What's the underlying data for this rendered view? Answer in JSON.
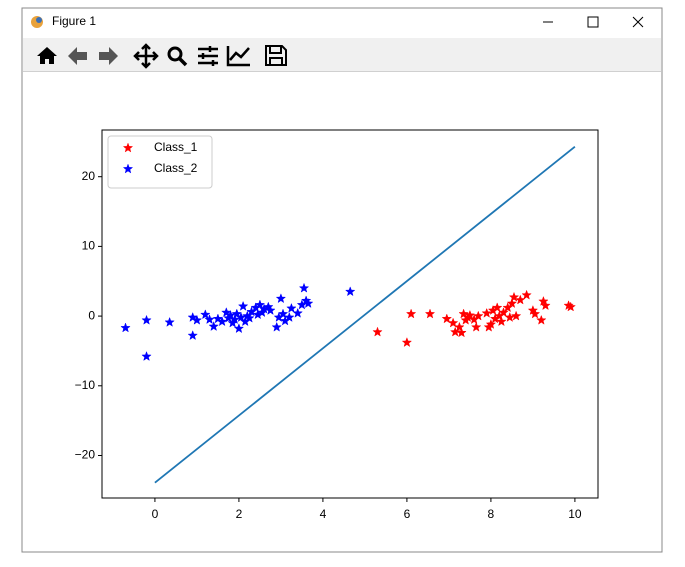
{
  "window": {
    "title": "Figure 1"
  },
  "chart_data": {
    "type": "scatter",
    "xlim": [
      -1.26,
      10.55
    ],
    "ylim": [
      -26.1,
      26.7
    ],
    "xticks": [
      0,
      2,
      4,
      6,
      8,
      10
    ],
    "yticks": [
      {
        "value": -20,
        "label": "−20"
      },
      {
        "value": -10,
        "label": "−10"
      },
      0,
      10,
      20
    ],
    "grid": false,
    "legend": "upper left",
    "line": {
      "color": "#1f77b4",
      "x": [
        0,
        10
      ],
      "y": [
        -23.9,
        24.3
      ]
    },
    "series": [
      {
        "name": "Class_1",
        "color": "#ff0000",
        "x": [
          5.3,
          6.0,
          6.1,
          6.55,
          6.95,
          7.1,
          7.15,
          7.25,
          7.3,
          7.35,
          7.4,
          7.45,
          7.5,
          7.6,
          7.7,
          7.65,
          7.9,
          7.95,
          8.0,
          8.05,
          8.1,
          8.15,
          8.2,
          8.25,
          8.3,
          8.4,
          8.45,
          8.5,
          8.55,
          8.6,
          8.7,
          8.85,
          9.0,
          9.05,
          9.2,
          9.25,
          9.3,
          9.85,
          9.9
        ],
        "values": [
          -2.3,
          -3.8,
          0.3,
          0.3,
          -0.4,
          -1.0,
          -2.3,
          -1.6,
          -2.4,
          0.3,
          -0.6,
          -0.2,
          0.1,
          -0.5,
          0.0,
          -1.6,
          0.4,
          -1.6,
          -1.2,
          0.8,
          -0.4,
          1.2,
          0.0,
          -0.8,
          0.5,
          1.2,
          -0.2,
          1.8,
          2.7,
          0.0,
          2.3,
          3.0,
          0.8,
          0.3,
          -0.6,
          2.1,
          1.5,
          1.5,
          1.3
        ]
      },
      {
        "name": "Class_2",
        "color": "#0000ff",
        "x": [
          -0.7,
          -0.2,
          -0.2,
          0.35,
          0.9,
          0.9,
          1.0,
          1.2,
          1.3,
          1.4,
          1.5,
          1.6,
          1.7,
          1.75,
          1.8,
          1.85,
          1.9,
          1.95,
          2.0,
          2.05,
          2.1,
          2.15,
          2.2,
          2.25,
          2.3,
          2.4,
          2.45,
          2.5,
          2.55,
          2.6,
          2.7,
          2.75,
          2.9,
          2.95,
          3.0,
          3.05,
          3.1,
          3.2,
          3.25,
          3.4,
          3.5,
          3.55,
          3.6,
          3.65,
          4.65
        ],
        "values": [
          -1.7,
          -0.6,
          -5.8,
          -0.9,
          -0.2,
          -2.8,
          -0.6,
          0.2,
          -0.5,
          -1.5,
          -0.4,
          -0.8,
          0.5,
          -0.3,
          0.1,
          -1.0,
          -0.5,
          0.3,
          -1.8,
          -0.2,
          1.4,
          -0.8,
          0.0,
          -0.3,
          0.6,
          1.2,
          0.2,
          1.6,
          0.5,
          1.0,
          1.3,
          0.8,
          -1.6,
          -0.2,
          2.5,
          0.3,
          -0.7,
          -0.2,
          1.1,
          0.4,
          1.6,
          4.0,
          2.2,
          1.8,
          3.5
        ]
      }
    ]
  }
}
